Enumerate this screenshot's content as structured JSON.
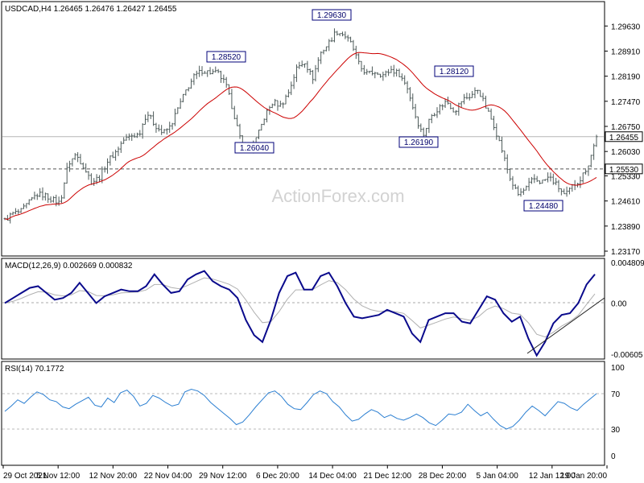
{
  "chart_data": [
    {
      "type": "ohlc",
      "header": "USDCAD,H4  1.26465 1.26476 1.26427 1.26455",
      "symbol": "USDCAD",
      "timeframe": "H4",
      "last_bar": {
        "open": 1.26465,
        "high": 1.26476,
        "low": 1.26427,
        "close": 1.26455
      },
      "price_badge": "1.26455",
      "level_badge": "1.25530",
      "support_level": 1.2553,
      "ylim": [
        1.2317,
        1.2996
      ],
      "y_ticks": [
        "1.29630",
        "1.28910",
        "1.28190",
        "1.27470",
        "1.26750",
        "1.26030",
        "1.25330",
        "1.24610",
        "1.23890",
        "1.23170"
      ],
      "x_ticks": [
        "29 Oct 2021",
        "5 Nov 12:00",
        "12 Nov 20:00",
        "22 Nov 04:00",
        "29 Nov 12:00",
        "6 Dec 20:00",
        "14 Dec 04:00",
        "21 Dec 12:00",
        "28 Dec 20:00",
        "5 Jan 04:00",
        "12 Jan 12:00",
        "19 Jan 20:00"
      ],
      "price_path": [
        1.2405,
        1.2425,
        1.243,
        1.2455,
        1.248,
        1.2478,
        1.2465,
        1.2455,
        1.2565,
        1.2595,
        1.256,
        1.2515,
        1.253,
        1.2575,
        1.26,
        1.2635,
        1.2648,
        1.2652,
        1.2715,
        1.268,
        1.2655,
        1.2675,
        1.273,
        1.278,
        1.2818,
        1.2835,
        1.283,
        1.2828,
        1.2795,
        1.2715,
        1.2622,
        1.2604,
        1.2645,
        1.2708,
        1.2745,
        1.2735,
        1.2775,
        1.2842,
        1.2862,
        1.2812,
        1.2885,
        1.2912,
        1.2948,
        1.2938,
        1.2908,
        1.2845,
        1.2825,
        1.2832,
        1.2822,
        1.2838,
        1.2825,
        1.2788,
        1.2708,
        1.2648,
        1.2705,
        1.2728,
        1.2748,
        1.2718,
        1.2752,
        1.2762,
        1.2782,
        1.2728,
        1.2678,
        1.2608,
        1.2528,
        1.2478,
        1.2495,
        1.2525,
        1.2515,
        1.253,
        1.2505,
        1.2475,
        1.2505,
        1.2525,
        1.2568,
        1.2645
      ],
      "annotations": [
        {
          "label": "1.28520",
          "index": 26
        },
        {
          "label": "1.26040",
          "index": 31
        },
        {
          "label": "1.29630",
          "index": 42
        },
        {
          "label": "1.28120",
          "index": 60
        },
        {
          "label": "1.26190",
          "index": 53
        },
        {
          "label": "1.24480",
          "index": 66
        }
      ],
      "moving_average": {
        "color": "#cc0000",
        "period": 20
      },
      "watermark": "ActionForex.com",
      "colors": {
        "bars": "#4d5a59",
        "ma": "#cc0000",
        "crosshair": "#b8b8b8",
        "level": "#555555"
      }
    },
    {
      "type": "line",
      "header": "MACD(12,26,9) 0.002669 0.000832",
      "ylim": [
        -0.00605,
        0.004809
      ],
      "y_ticks": [
        "0.004809",
        "0.00",
        "-0.00605"
      ],
      "macd": [
        0.0,
        0.0006,
        0.0012,
        0.0018,
        0.002,
        0.0012,
        0.0004,
        0.0006,
        0.0012,
        0.0024,
        0.0012,
        0.0,
        0.0008,
        0.0012,
        0.0016,
        0.0014,
        0.0014,
        0.002,
        0.0034,
        0.0022,
        0.0012,
        0.0014,
        0.0028,
        0.0034,
        0.0038,
        0.0026,
        0.002,
        0.0016,
        0.0006,
        -0.002,
        -0.0038,
        -0.0046,
        -0.002,
        0.0012,
        0.0032,
        0.0036,
        0.0016,
        0.0016,
        0.0032,
        0.0036,
        0.002,
        0.0,
        -0.0016,
        -0.0018,
        -0.0016,
        -0.0014,
        -0.0008,
        -0.0012,
        -0.0016,
        -0.0036,
        -0.0046,
        -0.002,
        -0.0016,
        -0.0012,
        -0.0012,
        -0.0022,
        -0.0024,
        -0.0008,
        0.0008,
        0.0004,
        -0.0012,
        -0.0022,
        -0.0016,
        -0.0042,
        -0.0062,
        -0.0046,
        -0.0024,
        -0.0014,
        -0.0012,
        0.0,
        0.0022,
        0.0034
      ],
      "signal_color": "#b0b0b0",
      "macd_color": "#0a0a8c",
      "trendline_color": "#222222"
    },
    {
      "type": "line",
      "header": "RSI(14) 70.1772",
      "ylim": [
        0,
        100
      ],
      "y_ticks": [
        "100",
        "70",
        "30",
        "0"
      ],
      "levels": [
        70,
        30
      ],
      "rsi": [
        50,
        56,
        63,
        59,
        66,
        72,
        69,
        63,
        61,
        55,
        53,
        58,
        62,
        66,
        57,
        55,
        65,
        60,
        71,
        74,
        67,
        56,
        59,
        68,
        65,
        60,
        56,
        58,
        72,
        75,
        73,
        68,
        60,
        54,
        48,
        42,
        35,
        38,
        46,
        55,
        63,
        71,
        73,
        67,
        58,
        53,
        52,
        60,
        69,
        73,
        70,
        61,
        55,
        46,
        39,
        41,
        47,
        52,
        49,
        43,
        46,
        42,
        40,
        43,
        47,
        43,
        37,
        34,
        40,
        47,
        46,
        49,
        58,
        51,
        45,
        49,
        41,
        34,
        30,
        33,
        40,
        49,
        56,
        51,
        45,
        53,
        61,
        59,
        54,
        51,
        58,
        64,
        70
      ],
      "color": "#2a7ed1"
    }
  ]
}
